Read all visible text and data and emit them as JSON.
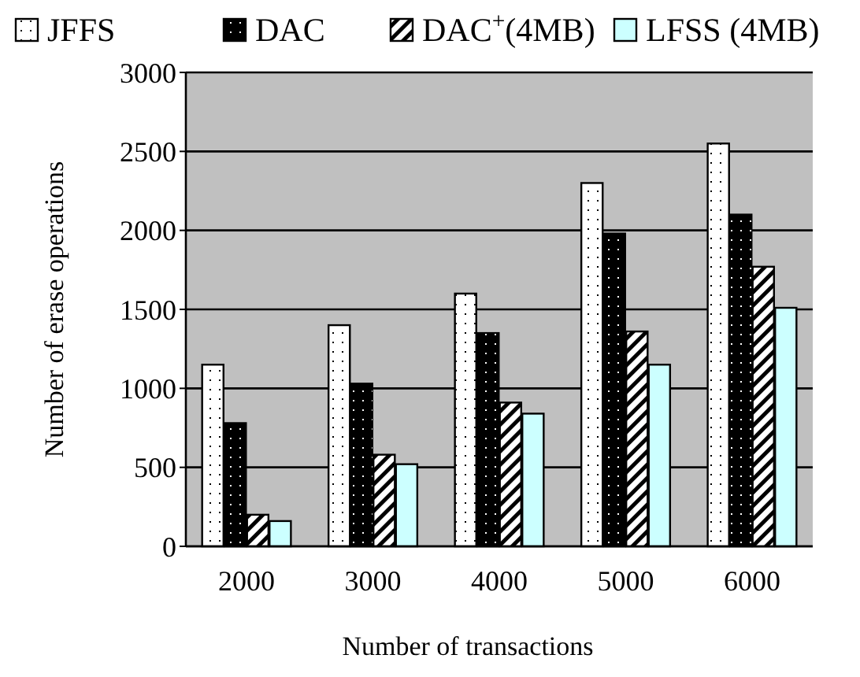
{
  "chart_data": {
    "type": "bar",
    "xlabel": "Number of transactions",
    "ylabel": "Number of erase operations",
    "categories": [
      "2000",
      "3000",
      "4000",
      "5000",
      "6000"
    ],
    "series": [
      {
        "name": "JFFS",
        "color": "#ffffff",
        "values": [
          1150,
          1400,
          1600,
          2300,
          2550
        ]
      },
      {
        "name": "DAC",
        "color": "#000000",
        "values": [
          780,
          1030,
          1350,
          1980,
          2100
        ]
      },
      {
        "name": "DAC$^{+}$(4MB)",
        "color": "#ffffff",
        "values": [
          200,
          580,
          910,
          1360,
          1770
        ]
      },
      {
        "name": "LFSS (4MB)",
        "color": "#ccffff",
        "values": [
          160,
          520,
          840,
          1150,
          1510
        ]
      }
    ],
    "ylim": [
      0,
      3000
    ],
    "yticks": [
      0,
      500,
      1000,
      1500,
      2000,
      2500,
      3000
    ],
    "grid": "y",
    "legend": "top"
  }
}
